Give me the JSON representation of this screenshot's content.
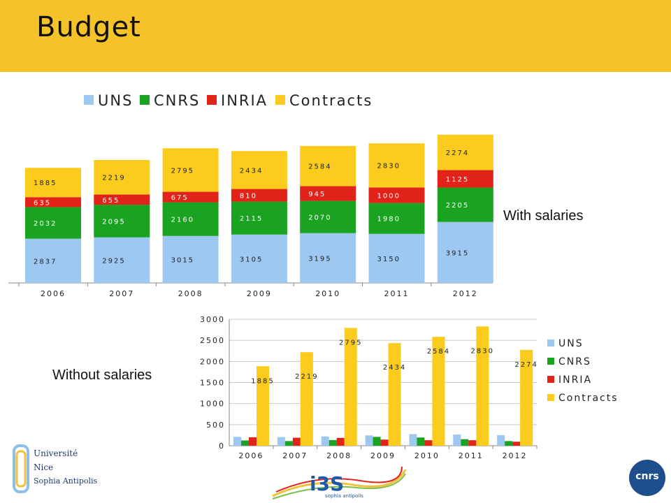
{
  "slide": {
    "title": "Budget",
    "label_with": "With salaries",
    "label_without": "Without salaries"
  },
  "logos": {
    "uns_line1": "Université",
    "uns_line2": "Nice",
    "uns_line3": "Sophia Antipolis",
    "i3s_text": "i3S",
    "i3s_sub": "sophia antipolis",
    "cnrs_text": "cnrs"
  },
  "colors": {
    "UNS": "#9dc8f2",
    "CNRS": "#1aa321",
    "INRIA": "#e2231a",
    "Contracts": "#fbcc1e",
    "title_bar": "#f6c22a"
  },
  "chart_data": [
    {
      "type": "bar",
      "stacked": true,
      "categories": [
        "2006",
        "2007",
        "2008",
        "2009",
        "2010",
        "2011",
        "2012"
      ],
      "series": [
        {
          "name": "UNS",
          "values": [
            2837,
            2925,
            3015,
            3105,
            3195,
            3150,
            3915
          ]
        },
        {
          "name": "CNRS",
          "values": [
            2032,
            2095,
            2160,
            2115,
            2070,
            1980,
            2205
          ]
        },
        {
          "name": "INRIA",
          "values": [
            635,
            655,
            675,
            810,
            945,
            1000,
            1125
          ]
        },
        {
          "name": "Contracts",
          "values": [
            1885,
            2219,
            2795,
            2434,
            2584,
            2830,
            2274
          ]
        }
      ],
      "title": "",
      "xlabel": "",
      "ylabel": "",
      "legend": "top",
      "data_labels": true,
      "grid": false
    },
    {
      "type": "bar",
      "stacked": false,
      "categories": [
        "2006",
        "2007",
        "2008",
        "2009",
        "2010",
        "2011",
        "2012"
      ],
      "series": [
        {
          "name": "UNS",
          "values": [
            210,
            205,
            220,
            245,
            275,
            265,
            250
          ]
        },
        {
          "name": "CNRS",
          "values": [
            125,
            110,
            135,
            210,
            195,
            155,
            110
          ]
        },
        {
          "name": "INRIA",
          "values": [
            200,
            190,
            185,
            145,
            130,
            130,
            95
          ]
        },
        {
          "name": "Contracts",
          "values": [
            1885,
            2219,
            2795,
            2434,
            2584,
            2830,
            2274
          ]
        }
      ],
      "labeled_series": "Contracts",
      "ylim": [
        0,
        3000
      ],
      "yticks": [
        0,
        500,
        1000,
        1500,
        2000,
        2500,
        3000
      ],
      "title": "",
      "xlabel": "",
      "ylabel": "",
      "legend": "right",
      "grid": true
    }
  ]
}
